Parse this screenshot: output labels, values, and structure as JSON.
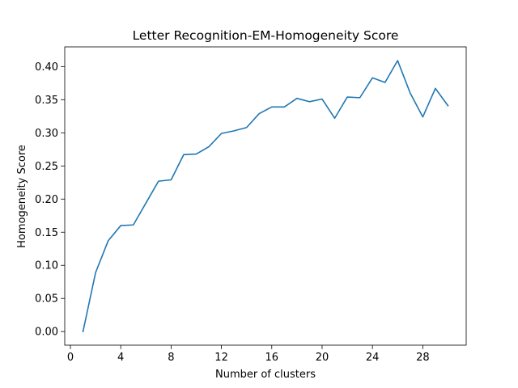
{
  "chart_data": {
    "type": "line",
    "title": "Letter Recognition-EM-Homogeneity Score",
    "xlabel": "Number of clusters",
    "ylabel": "Homogeneity Score",
    "xlim": [
      -0.45,
      31.45
    ],
    "ylim": [
      -0.0205,
      0.4297
    ],
    "xticks": [
      0,
      4,
      8,
      12,
      16,
      20,
      24,
      28
    ],
    "xtick_labels": [
      "0",
      "4",
      "8",
      "12",
      "16",
      "20",
      "24",
      "28"
    ],
    "yticks": [
      0.0,
      0.05,
      0.1,
      0.15,
      0.2,
      0.25,
      0.3,
      0.35,
      0.4
    ],
    "ytick_labels": [
      "0.00",
      "0.05",
      "0.10",
      "0.15",
      "0.20",
      "0.25",
      "0.30",
      "0.35",
      "0.40"
    ],
    "grid": false,
    "series": [
      {
        "color": "#1f77b4",
        "x": [
          1,
          2,
          3,
          4,
          5,
          6,
          7,
          8,
          9,
          10,
          11,
          12,
          13,
          14,
          15,
          16,
          17,
          18,
          19,
          20,
          21,
          22,
          23,
          24,
          25,
          26,
          27,
          28,
          29,
          30
        ],
        "values": [
          0.0,
          0.089,
          0.137,
          0.16,
          0.161,
          0.194,
          0.227,
          0.229,
          0.267,
          0.268,
          0.279,
          0.299,
          0.303,
          0.308,
          0.329,
          0.339,
          0.339,
          0.352,
          0.347,
          0.351,
          0.322,
          0.354,
          0.353,
          0.383,
          0.376,
          0.409,
          0.36,
          0.324,
          0.367,
          0.341
        ]
      }
    ]
  }
}
